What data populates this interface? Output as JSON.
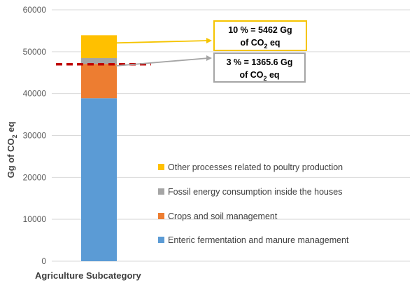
{
  "chart_data": {
    "type": "bar",
    "stacked": true,
    "ylabel": {
      "pre": "Gg of CO",
      "sub": "2",
      "post": " eq"
    },
    "xlabel": "Agriculture Subcategory",
    "ylim": [
      0,
      60000
    ],
    "yticks": [
      "0",
      "10000",
      "20000",
      "30000",
      "40000",
      "50000",
      "60000"
    ],
    "grid": true,
    "legend_position": "bottom-right",
    "reference_line": {
      "value": 47000,
      "style": "dashed",
      "color": "#c00000"
    },
    "series": [
      {
        "name": "Enteric fermentation and manure management",
        "value": 38900,
        "color": "#5b9bd5"
      },
      {
        "name": "Crops and soil management",
        "value": 8200,
        "color": "#ed7d31"
      },
      {
        "name": "Fossil energy consumption inside the houses",
        "value": 1366,
        "color": "#a5a5a5"
      },
      {
        "name": "Other processes related to poultry production",
        "value": 5462,
        "color": "#ffc000"
      }
    ],
    "annotations": [
      {
        "line1": "10 % = 5462 Gg",
        "line2": {
          "pre": "of CO",
          "sub": "2",
          "post": " eq"
        },
        "color": "#f5c400",
        "series_index": 3
      },
      {
        "line1": "3 % = 1365.6 Gg",
        "line2": {
          "pre": "of CO",
          "sub": "2",
          "post": " eq"
        },
        "color": "#a5a5a5",
        "series_index": 2
      }
    ]
  }
}
